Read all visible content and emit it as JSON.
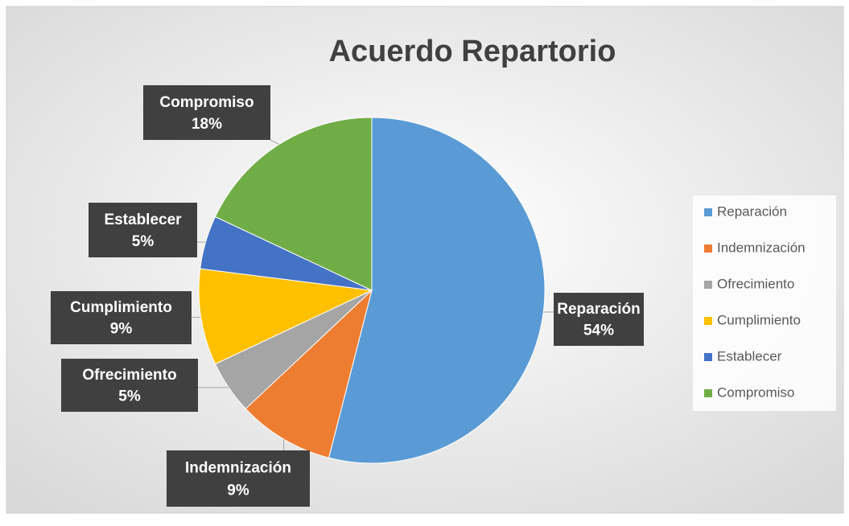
{
  "chart_data": {
    "type": "pie",
    "title": "Acuerdo Repartorio",
    "categories": [
      "Reparación",
      "Indemnización",
      "Ofrecimiento",
      "Cumplimiento",
      "Establecer",
      "Compromiso"
    ],
    "values": [
      54,
      9,
      5,
      9,
      5,
      18
    ],
    "value_labels": [
      "54%",
      "9%",
      "5%",
      "9%",
      "5%",
      "18%"
    ],
    "colors": [
      "#5b9bd5",
      "#ed7d31",
      "#a5a5a5",
      "#ffc000",
      "#4472c4",
      "#70ad47"
    ],
    "legend": "right"
  }
}
